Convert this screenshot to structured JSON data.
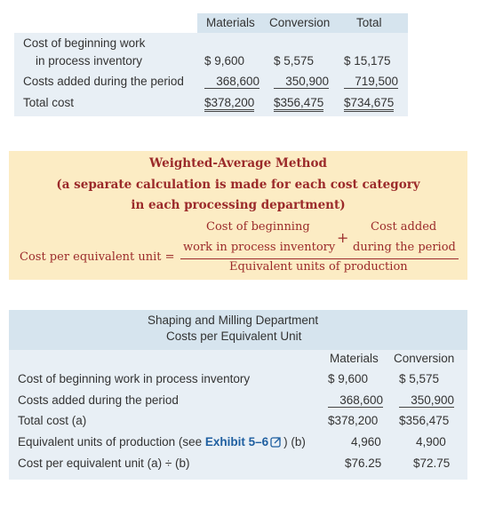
{
  "top_table": {
    "headers": [
      "Materials",
      "Conversion",
      "Total"
    ],
    "rows": [
      {
        "label_line1": "Cost of beginning work",
        "label_line2": "in process inventory",
        "cells": [
          "$  9,600",
          "$  5,575",
          "$  15,175"
        ]
      },
      {
        "label": "Costs added during the period",
        "cells": [
          "368,600",
          "350,900",
          "719,500"
        ]
      },
      {
        "label": "Total cost",
        "cells": [
          "$378,200",
          "$356,475",
          "$734,675"
        ]
      }
    ]
  },
  "weighted_box": {
    "heading_line1": "Weighted-Average Method",
    "heading_line2": "(a separate calculation is made for each cost category",
    "heading_line3": "in each processing department)",
    "lhs": "Cost per equivalent unit =",
    "num_term1_line1": "Cost of beginning",
    "num_term1_line2": "work in process inventory",
    "plus": "+",
    "num_term2_line1": "Cost added",
    "num_term2_line2": "during the period",
    "denominator": "Equivalent units of production"
  },
  "bottom_table": {
    "title_line1": "Shaping and Milling Department",
    "title_line2": "Costs per Equivalent Unit",
    "headers": [
      "Materials",
      "Conversion"
    ],
    "rows": [
      {
        "label": "Cost of beginning work in process inventory",
        "cells": [
          "$  9,600",
          "$  5,575"
        ]
      },
      {
        "label": "Costs added during the period",
        "cells": [
          "368,600",
          "350,900"
        ]
      },
      {
        "label": "Total cost (a)",
        "cells": [
          "$378,200",
          "$356,475"
        ]
      },
      {
        "label_pre": "Equivalent units of production (see ",
        "label_link": "Exhibit 5–6",
        "label_post": ") (b)",
        "cells": [
          "4,960",
          "4,900"
        ]
      },
      {
        "label": "Cost per equivalent unit (a) ÷ (b)",
        "cells": [
          "$76.25",
          "$72.75"
        ]
      }
    ]
  },
  "colors": {
    "header_band": "#d6e4ee",
    "body_band": "#e8eff5",
    "formula_bg": "#fcecc4",
    "formula_text": "#9b2a2a",
    "link": "#1f5fa0"
  }
}
